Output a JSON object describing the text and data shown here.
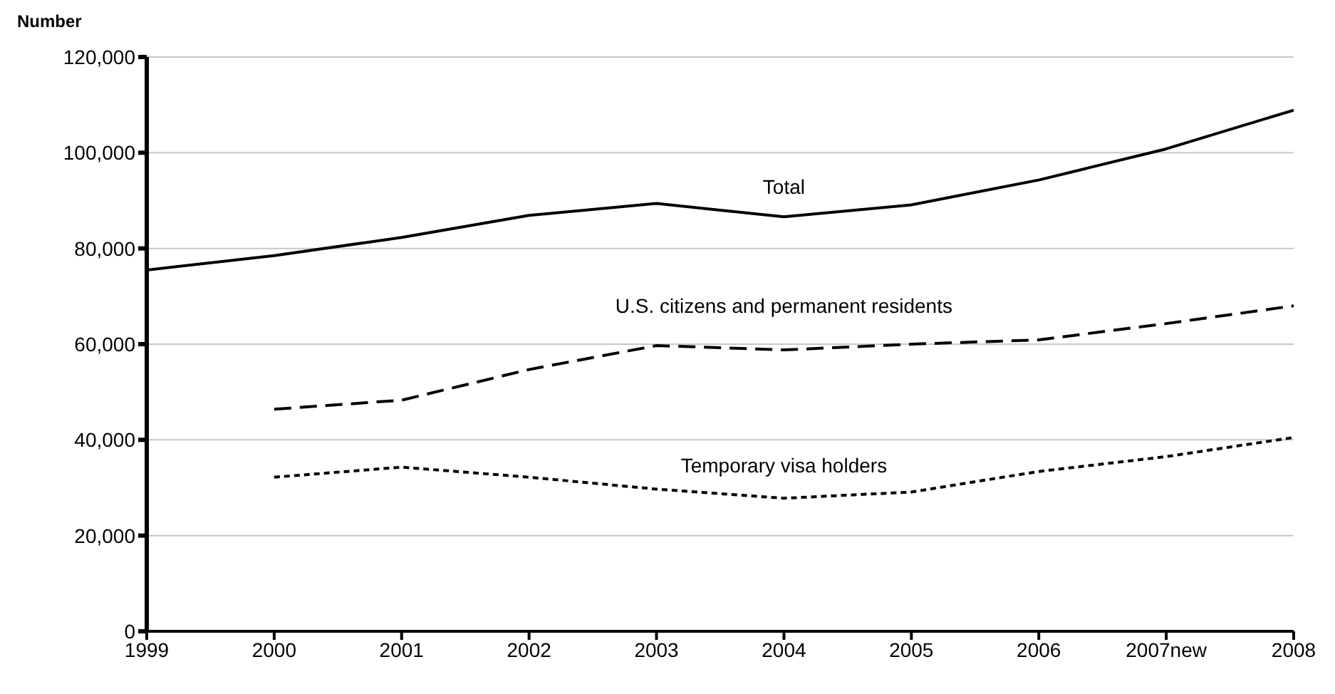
{
  "chart_data": {
    "type": "line",
    "ylabel": "Number",
    "categories": [
      "1999",
      "2000",
      "2001",
      "2002",
      "2003",
      "2004",
      "2005",
      "2006",
      "2007new",
      "2008"
    ],
    "series": [
      {
        "name": "Total",
        "color": "#000000",
        "line_style": "solid",
        "values": [
          75500,
          78500,
          82300,
          86900,
          89400,
          86600,
          89100,
          94300,
          100800,
          108900
        ]
      },
      {
        "name": "U.S. citizens and permanent residents",
        "color": "#000000",
        "line_style": "dashed",
        "values": [
          null,
          46400,
          48300,
          54700,
          59700,
          58800,
          60000,
          60900,
          64300,
          68000
        ]
      },
      {
        "name": "Temporary visa holders",
        "color": "#000000",
        "line_style": "dotted",
        "values": [
          null,
          32200,
          34300,
          32200,
          29700,
          27800,
          29100,
          33400,
          36500,
          40500
        ]
      }
    ],
    "ylim": [
      0,
      120000
    ],
    "yticks": [
      0,
      {
        "value": 20000,
        "label": "20,000"
      },
      {
        "value": 40000,
        "label": "40,000"
      },
      {
        "value": 60000,
        "label": "60,000"
      },
      {
        "value": 80000,
        "label": "80,000"
      },
      {
        "value": 100000,
        "label": "100,000"
      },
      {
        "value": 120000,
        "label": "120,000"
      }
    ],
    "grid": "y",
    "legend": false,
    "marker": "none"
  }
}
